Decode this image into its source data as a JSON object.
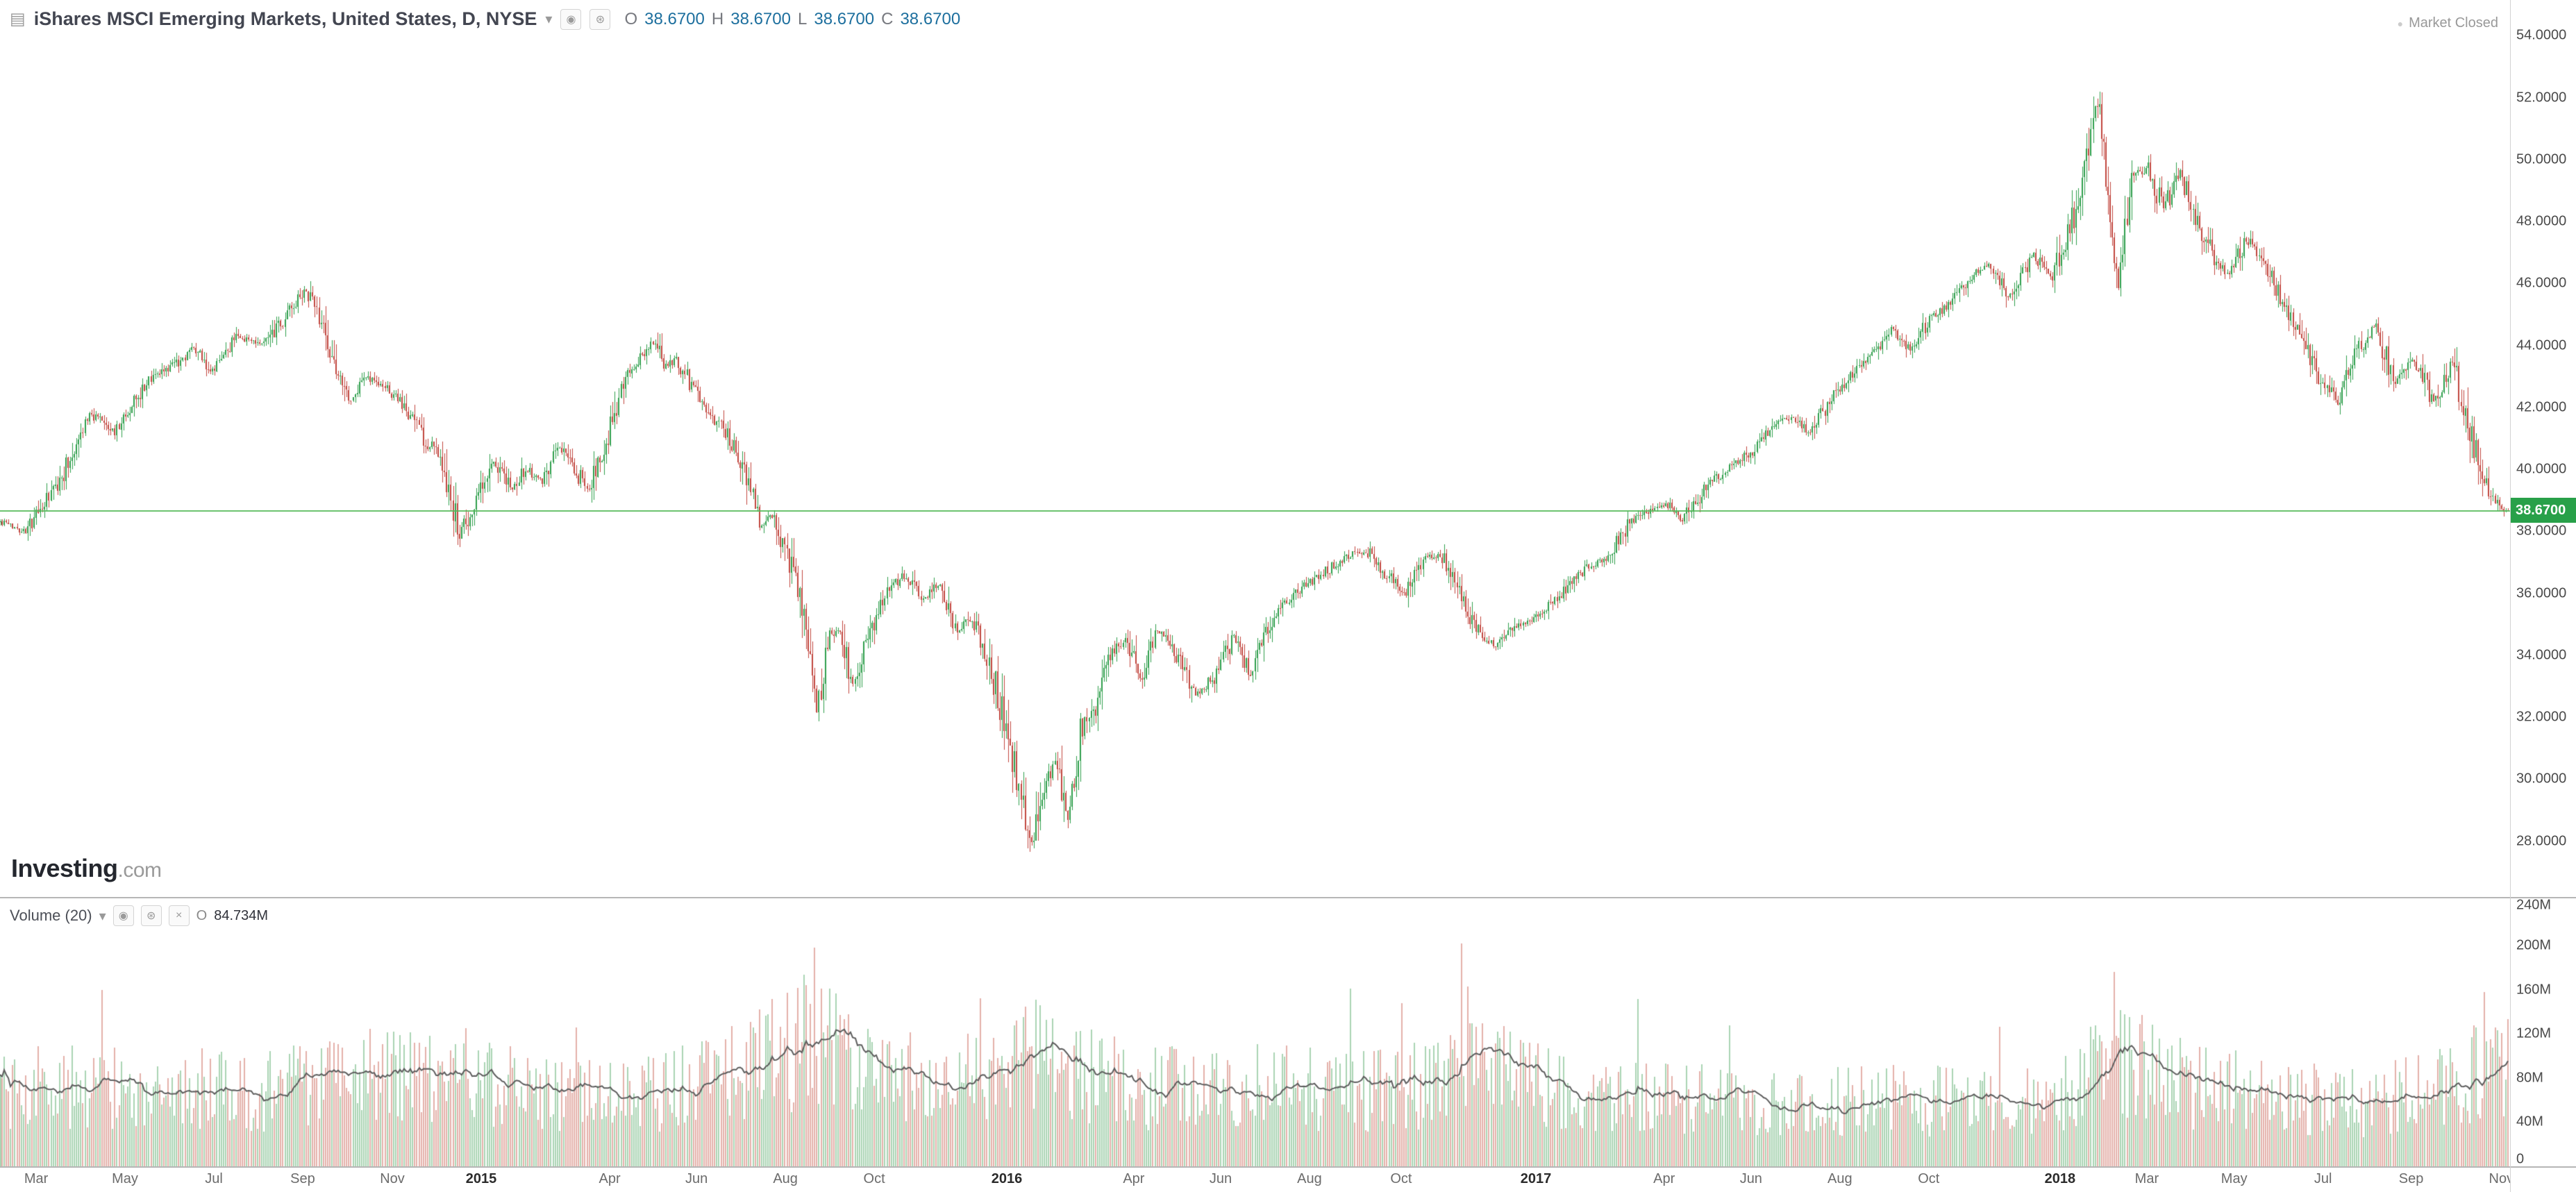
{
  "header": {
    "instrument_icon": "▤",
    "title": "iShares MSCI Emerging Markets, United States, D, NYSE",
    "dropdown_caret": "▾",
    "icons": [
      {
        "name": "visibility-icon",
        "glyph": "◉"
      },
      {
        "name": "settings-icon",
        "glyph": "⊛"
      }
    ],
    "ohlc": {
      "o_label": "O",
      "o": "38.6700",
      "h_label": "H",
      "h": "38.6700",
      "l_label": "L",
      "l": "38.6700",
      "c_label": "C",
      "c": "38.6700"
    },
    "market_status": {
      "dot": "●",
      "label": "Market Closed"
    }
  },
  "watermark": {
    "brand": "Investing",
    "suffix": ".com"
  },
  "volume_legend": {
    "label": "Volume (20)",
    "caret": "▾",
    "icons": [
      {
        "name": "visibility-icon",
        "glyph": "◉"
      },
      {
        "name": "settings-icon",
        "glyph": "⊛"
      },
      {
        "name": "delete-icon",
        "glyph": "×"
      }
    ],
    "value_prefix": "O",
    "value": "84.734M"
  },
  "chart_data": {
    "type": "candlestick",
    "title": "iShares MSCI Emerging Markets",
    "exchange": "NYSE",
    "interval": "D",
    "x_span": [
      "Mar 2014",
      "Nov 2018"
    ],
    "n_points": 1180,
    "last_price": 38.67,
    "last_price_text": "38.6700",
    "price_axis": {
      "range": [
        26.2,
        55.15
      ],
      "ticks": [
        {
          "v": 54,
          "t": "54.0000"
        },
        {
          "v": 52,
          "t": "52.0000"
        },
        {
          "v": 50,
          "t": "50.0000"
        },
        {
          "v": 48,
          "t": "48.0000"
        },
        {
          "v": 46,
          "t": "46.0000"
        },
        {
          "v": 44,
          "t": "44.0000"
        },
        {
          "v": 42,
          "t": "42.0000"
        },
        {
          "v": 40,
          "t": "40.0000"
        },
        {
          "v": 38,
          "t": "38.0000"
        },
        {
          "v": 36,
          "t": "36.0000"
        },
        {
          "v": 34,
          "t": "34.0000"
        },
        {
          "v": 32,
          "t": "32.0000"
        },
        {
          "v": 30,
          "t": "30.0000"
        },
        {
          "v": 28,
          "t": "28.0000"
        }
      ]
    },
    "price_anchors": [
      [
        0,
        38.3
      ],
      [
        12,
        38.0
      ],
      [
        27,
        39.5
      ],
      [
        42,
        41.8
      ],
      [
        54,
        41.2
      ],
      [
        69,
        42.8
      ],
      [
        81,
        43.3
      ],
      [
        91,
        43.9
      ],
      [
        100,
        43.2
      ],
      [
        112,
        44.3
      ],
      [
        124,
        44.0
      ],
      [
        135,
        45.0
      ],
      [
        144,
        45.9
      ],
      [
        154,
        44.0
      ],
      [
        164,
        42.2
      ],
      [
        171,
        43.0
      ],
      [
        181,
        42.7
      ],
      [
        191,
        42.0
      ],
      [
        199,
        41.0
      ],
      [
        208,
        40.3
      ],
      [
        216,
        37.9
      ],
      [
        224,
        39.0
      ],
      [
        232,
        40.3
      ],
      [
        241,
        39.3
      ],
      [
        247,
        40.0
      ],
      [
        255,
        39.6
      ],
      [
        262,
        40.7
      ],
      [
        270,
        40.1
      ],
      [
        276,
        39.3
      ],
      [
        286,
        41.0
      ],
      [
        293,
        42.8
      ],
      [
        301,
        43.6
      ],
      [
        307,
        44.1
      ],
      [
        313,
        43.3
      ],
      [
        318,
        43.6
      ],
      [
        328,
        42.3
      ],
      [
        340,
        41.3
      ],
      [
        349,
        40.2
      ],
      [
        357,
        38.2
      ],
      [
        363,
        38.6
      ],
      [
        370,
        37.2
      ],
      [
        377,
        35.5
      ],
      [
        384,
        32.3
      ],
      [
        390,
        34.4
      ],
      [
        395,
        34.8
      ],
      [
        401,
        33.2
      ],
      [
        409,
        34.8
      ],
      [
        418,
        36.2
      ],
      [
        426,
        36.6
      ],
      [
        434,
        35.8
      ],
      [
        442,
        36.3
      ],
      [
        450,
        34.8
      ],
      [
        457,
        35.2
      ],
      [
        465,
        33.8
      ],
      [
        472,
        31.9
      ],
      [
        480,
        29.6
      ],
      [
        485,
        27.9
      ],
      [
        490,
        29.8
      ],
      [
        496,
        30.5
      ],
      [
        502,
        28.8
      ],
      [
        508,
        31.5
      ],
      [
        514,
        32.2
      ],
      [
        520,
        33.9
      ],
      [
        529,
        34.5
      ],
      [
        536,
        33.2
      ],
      [
        544,
        34.8
      ],
      [
        552,
        34.2
      ],
      [
        562,
        32.7
      ],
      [
        571,
        33.3
      ],
      [
        580,
        34.6
      ],
      [
        588,
        33.4
      ],
      [
        598,
        35.2
      ],
      [
        610,
        36.1
      ],
      [
        621,
        36.6
      ],
      [
        631,
        37.1
      ],
      [
        642,
        37.4
      ],
      [
        652,
        36.6
      ],
      [
        660,
        36.0
      ],
      [
        670,
        37.3
      ],
      [
        679,
        37.1
      ],
      [
        689,
        35.6
      ],
      [
        696,
        34.6
      ],
      [
        704,
        34.3
      ],
      [
        714,
        35.0
      ],
      [
        724,
        35.3
      ],
      [
        733,
        35.9
      ],
      [
        745,
        36.8
      ],
      [
        755,
        37.1
      ],
      [
        766,
        38.3
      ],
      [
        776,
        38.7
      ],
      [
        783,
        38.9
      ],
      [
        791,
        38.4
      ],
      [
        803,
        39.5
      ],
      [
        814,
        40.1
      ],
      [
        824,
        40.6
      ],
      [
        834,
        41.4
      ],
      [
        843,
        41.7
      ],
      [
        851,
        41.2
      ],
      [
        861,
        42.3
      ],
      [
        871,
        43.1
      ],
      [
        880,
        43.6
      ],
      [
        889,
        44.5
      ],
      [
        898,
        43.9
      ],
      [
        907,
        44.8
      ],
      [
        917,
        45.3
      ],
      [
        926,
        46.2
      ],
      [
        936,
        46.6
      ],
      [
        945,
        45.6
      ],
      [
        956,
        46.9
      ],
      [
        965,
        46.2
      ],
      [
        974,
        48.0
      ],
      [
        980,
        49.8
      ],
      [
        986,
        51.8
      ],
      [
        991,
        49.0
      ],
      [
        996,
        45.8
      ],
      [
        1002,
        49.4
      ],
      [
        1010,
        49.8
      ],
      [
        1017,
        48.4
      ],
      [
        1025,
        49.6
      ],
      [
        1033,
        48.0
      ],
      [
        1041,
        46.8
      ],
      [
        1048,
        46.3
      ],
      [
        1056,
        47.4
      ],
      [
        1064,
        46.8
      ],
      [
        1073,
        45.4
      ],
      [
        1081,
        44.5
      ],
      [
        1090,
        43.0
      ],
      [
        1099,
        42.2
      ],
      [
        1109,
        43.9
      ],
      [
        1117,
        44.6
      ],
      [
        1126,
        42.8
      ],
      [
        1135,
        43.6
      ],
      [
        1144,
        42.2
      ],
      [
        1153,
        43.5
      ],
      [
        1161,
        41.2
      ],
      [
        1167,
        39.8
      ],
      [
        1173,
        38.9
      ],
      [
        1179,
        38.67
      ]
    ],
    "volume_axis": {
      "range_m": [
        0,
        243
      ],
      "ticks": [
        {
          "v": 240,
          "t": "240M"
        },
        {
          "v": 200,
          "t": "200M"
        },
        {
          "v": 160,
          "t": "160M"
        },
        {
          "v": 120,
          "t": "120M"
        },
        {
          "v": 80,
          "t": "80M"
        },
        {
          "v": 40,
          "t": "40M"
        },
        {
          "v": 0,
          "t": "0"
        }
      ]
    },
    "volume": {
      "ma_period": 20,
      "ma_display": "84.734M",
      "base_anchors": [
        [
          0,
          70
        ],
        [
          60,
          72
        ],
        [
          120,
          68
        ],
        [
          180,
          78
        ],
        [
          216,
          85
        ],
        [
          260,
          62
        ],
        [
          310,
          68
        ],
        [
          350,
          85
        ],
        [
          384,
          120
        ],
        [
          410,
          78
        ],
        [
          450,
          80
        ],
        [
          480,
          100
        ],
        [
          500,
          90
        ],
        [
          540,
          70
        ],
        [
          580,
          72
        ],
        [
          620,
          70
        ],
        [
          660,
          68
        ],
        [
          689,
          95
        ],
        [
          710,
          80
        ],
        [
          745,
          60
        ],
        [
          790,
          62
        ],
        [
          840,
          55
        ],
        [
          880,
          62
        ],
        [
          920,
          58
        ],
        [
          960,
          62
        ],
        [
          986,
          85
        ],
        [
          1000,
          95
        ],
        [
          1030,
          72
        ],
        [
          1070,
          65
        ],
        [
          1110,
          58
        ],
        [
          1140,
          68
        ],
        [
          1165,
          85
        ],
        [
          1179,
          95
        ]
      ],
      "spikes": [
        [
          48,
          160
        ],
        [
          174,
          135
        ],
        [
          271,
          130
        ],
        [
          383,
          212
        ],
        [
          386,
          168
        ],
        [
          461,
          150
        ],
        [
          487,
          145
        ],
        [
          635,
          172
        ],
        [
          659,
          138
        ],
        [
          687,
          205
        ],
        [
          690,
          158
        ],
        [
          770,
          162
        ],
        [
          813,
          128
        ],
        [
          940,
          125
        ],
        [
          988,
          120
        ],
        [
          994,
          168
        ],
        [
          997,
          152
        ],
        [
          1168,
          162
        ],
        [
          1173,
          125
        ]
      ]
    },
    "time_ticks": [
      {
        "t": "Mar",
        "pos": 0.0144
      },
      {
        "t": "May",
        "pos": 0.0498
      },
      {
        "t": "Jul",
        "pos": 0.0852
      },
      {
        "t": "Sep",
        "pos": 0.1206
      },
      {
        "t": "Nov",
        "pos": 0.1563
      },
      {
        "t": "2015",
        "pos": 0.1917,
        "year": true
      },
      {
        "t": "Apr",
        "pos": 0.2429
      },
      {
        "t": "Jun",
        "pos": 0.2775
      },
      {
        "t": "Aug",
        "pos": 0.3129
      },
      {
        "t": "Oct",
        "pos": 0.3483
      },
      {
        "t": "2016",
        "pos": 0.4011,
        "year": true
      },
      {
        "t": "Apr",
        "pos": 0.4517
      },
      {
        "t": "Jun",
        "pos": 0.4863
      },
      {
        "t": "Aug",
        "pos": 0.5217
      },
      {
        "t": "Oct",
        "pos": 0.5582
      },
      {
        "t": "2017",
        "pos": 0.6119,
        "year": true
      },
      {
        "t": "Apr",
        "pos": 0.663
      },
      {
        "t": "Jun",
        "pos": 0.6976
      },
      {
        "t": "Aug",
        "pos": 0.733
      },
      {
        "t": "Oct",
        "pos": 0.7684
      },
      {
        "t": "2018",
        "pos": 0.8207,
        "year": true
      },
      {
        "t": "Mar",
        "pos": 0.8553
      },
      {
        "t": "May",
        "pos": 0.8901
      },
      {
        "t": "Jul",
        "pos": 0.9255
      },
      {
        "t": "Sep",
        "pos": 0.9606
      },
      {
        "t": "Nov",
        "pos": 0.9965
      }
    ],
    "colors": {
      "up": "#2e9e4b",
      "down": "#c0443d",
      "vol_up": "rgba(99,177,116,0.55)",
      "vol_down": "rgba(205,112,101,0.55)",
      "ma_line": "#5c5c5c",
      "last_price_line": "#54b857",
      "last_price_tag": "#28a049",
      "ohlc_value": "#1d6f9e",
      "axis_text": "#4a4a4a"
    }
  }
}
